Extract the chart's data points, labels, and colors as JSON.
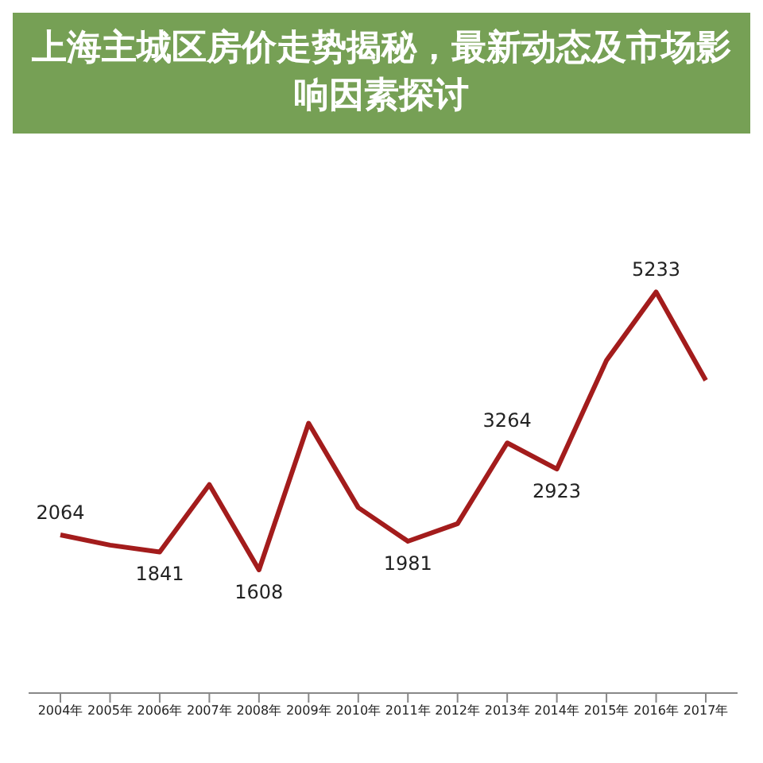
{
  "chart_data": {
    "type": "line",
    "title": "上海主城区房价走势揭秘，最新动态及市场影响因素探讨",
    "categories": [
      "2004年",
      "2005年",
      "2006年",
      "2007年",
      "2008年",
      "2009年",
      "2010年",
      "2011年",
      "2012年",
      "2013年",
      "2014年",
      "2015年",
      "2016年",
      "2017年"
    ],
    "series": [
      {
        "color": "#a31c1c",
        "values": [
          2064,
          1930,
          1841,
          2720,
          1608,
          3520,
          2420,
          1981,
          2210,
          3264,
          2923,
          4340,
          5233,
          4080
        ],
        "value_labels": [
          "2064",
          null,
          "1841",
          null,
          "1608",
          null,
          null,
          "1981",
          null,
          "3264",
          "2923",
          null,
          "5233",
          null
        ]
      }
    ],
    "tick_labels": "x",
    "marker": "none",
    "line_style": "solid",
    "legend": false
  }
}
